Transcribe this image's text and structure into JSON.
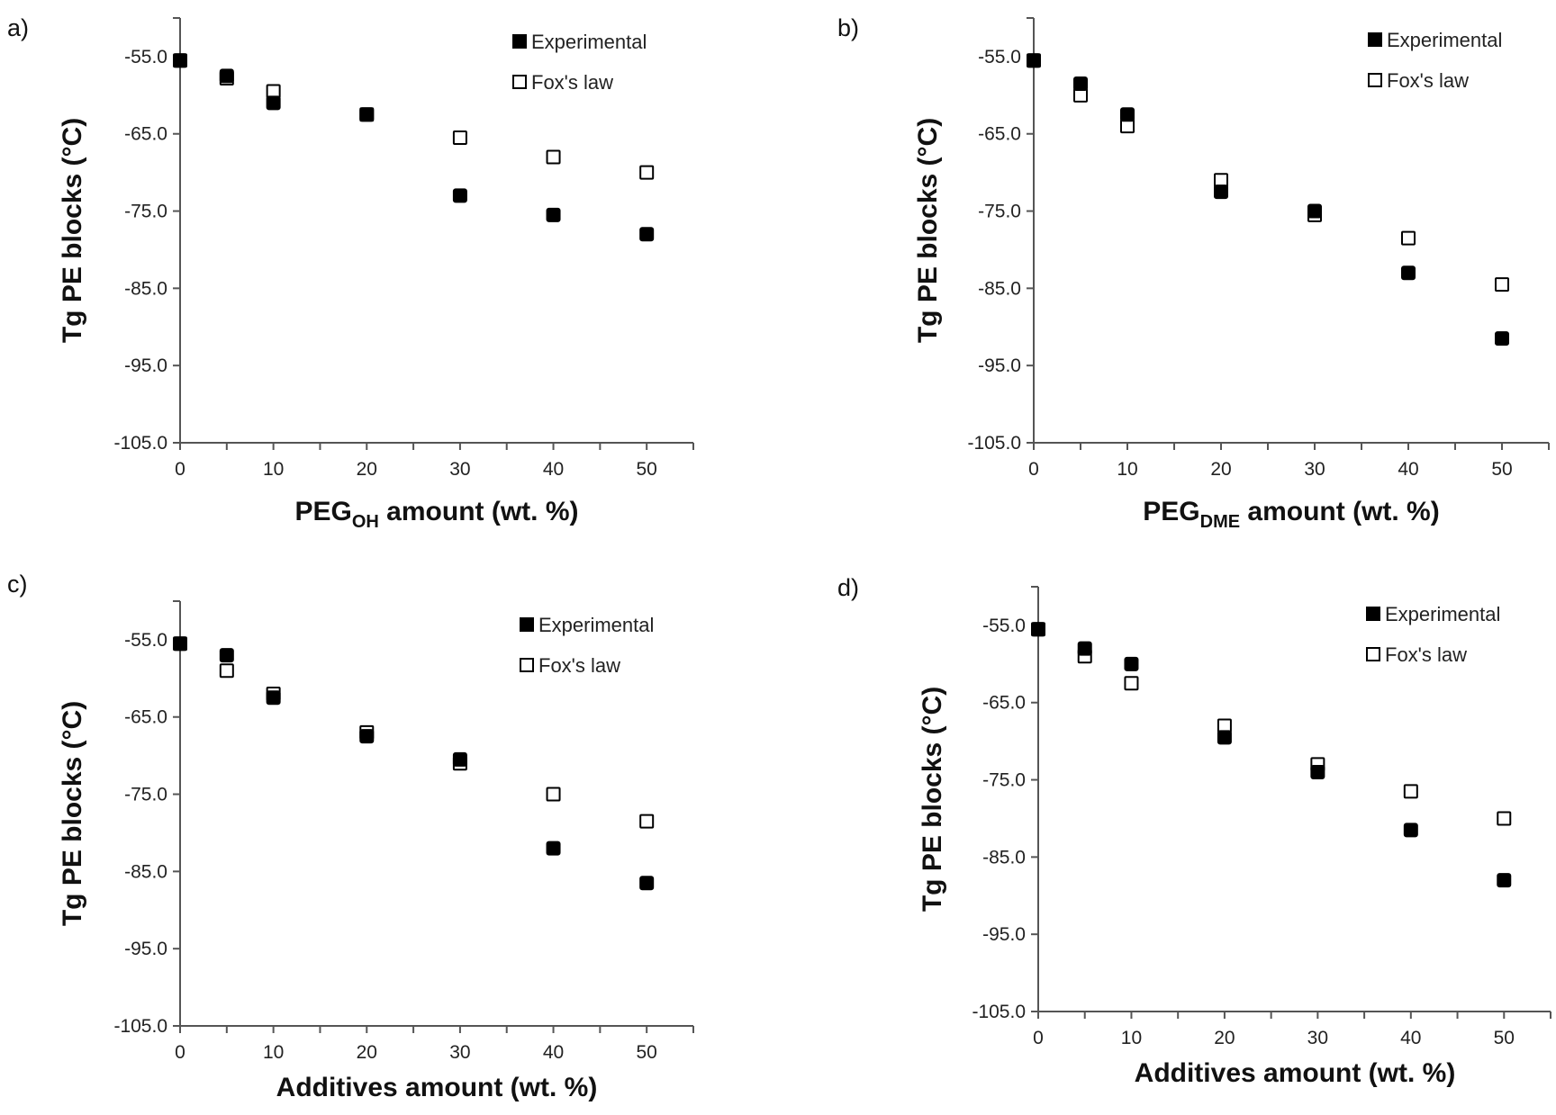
{
  "chart_data": [
    {
      "type": "scatter",
      "panel_label": "a)",
      "xlabel": {
        "main": "PEG",
        "sub": "OH",
        "rest": " amount (wt. %)"
      },
      "ylabel": "Tg PE blocks (°C)",
      "xlim": [
        0,
        55
      ],
      "ylim": [
        -105,
        -50
      ],
      "xticks": [
        0,
        10,
        20,
        30,
        40,
        50
      ],
      "xtick_labels": [
        "0",
        "10",
        "20",
        "30",
        "40",
        "50"
      ],
      "yticks": [
        -55,
        -65,
        -75,
        -85,
        -95,
        -105
      ],
      "ytick_labels": [
        "-55.0",
        "-65.0",
        "-75.0",
        "-85.0",
        "-95.0",
        "-105.0"
      ],
      "grid": false,
      "legend_position": "top-right",
      "series": [
        {
          "name": "Experimental",
          "marker": "filled-square",
          "x": [
            0,
            5,
            10,
            20,
            30,
            40,
            50
          ],
          "y": [
            -55.5,
            -57.5,
            -61.0,
            -62.5,
            -73.0,
            -75.5,
            -78.0
          ]
        },
        {
          "name": "Fox's law",
          "marker": "open-square",
          "x": [
            0,
            5,
            10,
            20,
            30,
            40,
            50
          ],
          "y": [
            -55.5,
            -57.8,
            -59.5,
            -62.5,
            -65.5,
            -68.0,
            -70.0
          ]
        }
      ]
    },
    {
      "type": "scatter",
      "panel_label": "b)",
      "xlabel": {
        "main": "PEG",
        "sub": "DME",
        "rest": " amount (wt. %)"
      },
      "ylabel": "Tg PE blocks (°C)",
      "xlim": [
        0,
        55
      ],
      "ylim": [
        -105,
        -50
      ],
      "xticks": [
        0,
        10,
        20,
        30,
        40,
        50
      ],
      "xtick_labels": [
        "0",
        "10",
        "20",
        "30",
        "40",
        "50"
      ],
      "yticks": [
        -55,
        -65,
        -75,
        -85,
        -95,
        -105
      ],
      "ytick_labels": [
        "-55.0",
        "-65.0",
        "-75.0",
        "-85.0",
        "-95.0",
        "-105.0"
      ],
      "grid": false,
      "legend_position": "top-right",
      "series": [
        {
          "name": "Experimental",
          "marker": "filled-square",
          "x": [
            0,
            5,
            10,
            20,
            30,
            40,
            50
          ],
          "y": [
            -55.5,
            -58.5,
            -62.5,
            -72.5,
            -75.0,
            -83.0,
            -91.5
          ]
        },
        {
          "name": "Fox's law",
          "marker": "open-square",
          "x": [
            0,
            5,
            10,
            20,
            30,
            40,
            50
          ],
          "y": [
            -55.5,
            -60.0,
            -64.0,
            -71.0,
            -75.5,
            -78.5,
            -84.5
          ]
        }
      ]
    },
    {
      "type": "scatter",
      "panel_label": "c)",
      "xlabel": {
        "main": "Additives amount (wt. %)",
        "sub": "",
        "rest": ""
      },
      "ylabel": "Tg PE blocks (°C)",
      "xlim": [
        0,
        55
      ],
      "ylim": [
        -105,
        -50
      ],
      "xticks": [
        0,
        10,
        20,
        30,
        40,
        50
      ],
      "xtick_labels": [
        "0",
        "10",
        "20",
        "30",
        "40",
        "50"
      ],
      "yticks": [
        -55,
        -65,
        -75,
        -85,
        -95,
        -105
      ],
      "ytick_labels": [
        "-55.0",
        "-65.0",
        "-75.0",
        "-85.0",
        "-95.0",
        "-105.0"
      ],
      "grid": false,
      "legend_position": "top-right",
      "series": [
        {
          "name": "Experimental",
          "marker": "filled-square",
          "x": [
            0,
            5,
            10,
            20,
            30,
            40,
            50
          ],
          "y": [
            -55.5,
            -57.0,
            -62.5,
            -67.5,
            -70.5,
            -82.0,
            -86.5
          ]
        },
        {
          "name": "Fox's law",
          "marker": "open-square",
          "x": [
            0,
            5,
            10,
            20,
            30,
            40,
            50
          ],
          "y": [
            -55.5,
            -59.0,
            -62.0,
            -67.0,
            -71.0,
            -75.0,
            -78.5
          ]
        }
      ]
    },
    {
      "type": "scatter",
      "panel_label": "d)",
      "xlabel": {
        "main": "Additives amount (wt. %)",
        "sub": "",
        "rest": ""
      },
      "ylabel": "Tg PE blocks (°C)",
      "xlim": [
        0,
        55
      ],
      "ylim": [
        -105,
        -50
      ],
      "xticks": [
        0,
        10,
        20,
        30,
        40,
        50
      ],
      "xtick_labels": [
        "0",
        "10",
        "20",
        "30",
        "40",
        "50"
      ],
      "yticks": [
        -55,
        -65,
        -75,
        -85,
        -95,
        -105
      ],
      "ytick_labels": [
        "-55.0",
        "-65.0",
        "-75.0",
        "-85.0",
        "-95.0",
        "-105.0"
      ],
      "grid": false,
      "legend_position": "top-right",
      "series": [
        {
          "name": "Experimental",
          "marker": "filled-square",
          "x": [
            0,
            5,
            10,
            20,
            30,
            40,
            50
          ],
          "y": [
            -55.5,
            -58.0,
            -60.0,
            -69.5,
            -74.0,
            -81.5,
            -88.0
          ]
        },
        {
          "name": "Fox's law",
          "marker": "open-square",
          "x": [
            0,
            5,
            10,
            20,
            30,
            40,
            50
          ],
          "y": [
            -55.5,
            -59.0,
            -62.5,
            -68.0,
            -73.0,
            -76.5,
            -80.0
          ]
        }
      ]
    }
  ]
}
